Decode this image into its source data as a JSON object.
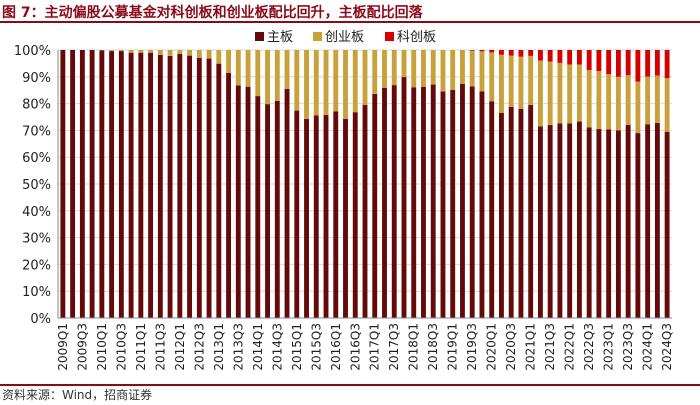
{
  "title": "图 7：主动偏股公募基金对科创板和创业板配比回升，主板配比回落",
  "source": "资料来源：Wind，招商证券",
  "chart_data": {
    "type": "bar",
    "stacked": true,
    "title": "",
    "xlabel": "",
    "ylabel": "",
    "ylim": [
      0,
      100
    ],
    "yticks": [
      "0%",
      "10%",
      "20%",
      "30%",
      "40%",
      "50%",
      "60%",
      "70%",
      "80%",
      "90%",
      "100%"
    ],
    "grid": true,
    "legend_position": "top",
    "categories": [
      "2009Q1",
      "2009Q2",
      "2009Q3",
      "2009Q4",
      "2010Q1",
      "2010Q2",
      "2010Q3",
      "2010Q4",
      "2011Q1",
      "2011Q2",
      "2011Q3",
      "2011Q4",
      "2012Q1",
      "2012Q2",
      "2012Q3",
      "2012Q4",
      "2013Q1",
      "2013Q2",
      "2013Q3",
      "2013Q4",
      "2014Q1",
      "2014Q2",
      "2014Q3",
      "2014Q4",
      "2015Q1",
      "2015Q2",
      "2015Q3",
      "2015Q4",
      "2016Q1",
      "2016Q2",
      "2016Q3",
      "2016Q4",
      "2017Q1",
      "2017Q2",
      "2017Q3",
      "2017Q4",
      "2018Q1",
      "2018Q2",
      "2018Q3",
      "2018Q4",
      "2019Q1",
      "2019Q2",
      "2019Q3",
      "2019Q4",
      "2020Q1",
      "2020Q2",
      "2020Q3",
      "2020Q4",
      "2021Q1",
      "2021Q2",
      "2021Q3",
      "2021Q4",
      "2022Q1",
      "2022Q2",
      "2022Q3",
      "2022Q4",
      "2023Q1",
      "2023Q2",
      "2023Q3",
      "2023Q4",
      "2024Q1",
      "2024Q2",
      "2024Q3"
    ],
    "series": [
      {
        "name": "主板",
        "color": "#640a0a",
        "values": [
          100,
          100,
          100,
          100,
          99.9,
          99.6,
          99.6,
          99,
          99,
          99,
          98.2,
          97.8,
          98.5,
          97.9,
          97.1,
          96.8,
          94.9,
          91.5,
          86.8,
          86.3,
          82.8,
          79.8,
          81,
          85.5,
          77.4,
          74.3,
          75.6,
          75.8,
          77.1,
          74.3,
          76.8,
          79.5,
          83.6,
          85.9,
          86.9,
          89.9,
          86.1,
          86.3,
          87.1,
          84.5,
          85.1,
          87.4,
          86.4,
          84.6,
          80.9,
          76.5,
          78.8,
          78.1,
          79.5,
          71.5,
          72,
          72.6,
          72.6,
          73.3,
          71.1,
          70.5,
          70.4,
          70,
          72.1,
          69,
          72.3,
          72.8,
          69.5
        ]
      },
      {
        "name": "创业板",
        "color": "#c9a13a",
        "values": [
          0,
          0,
          0,
          0,
          0.1,
          0.4,
          0.4,
          1,
          1,
          1,
          1.8,
          2.2,
          1.5,
          2.1,
          2.9,
          3.2,
          5.1,
          8.5,
          13.2,
          13.7,
          17.2,
          20.2,
          19,
          14.5,
          22.6,
          25.7,
          24.4,
          24.2,
          22.9,
          25.7,
          23.2,
          20.5,
          16.4,
          14.1,
          13.1,
          10.1,
          13.9,
          13.7,
          12.9,
          15.5,
          14.9,
          12.6,
          13.4,
          14.9,
          18.2,
          21.7,
          19.1,
          19.4,
          18.3,
          24.6,
          23.7,
          22.6,
          22,
          21.3,
          21.4,
          21.6,
          20.6,
          20,
          18.5,
          19.2,
          17.8,
          17.7,
          20
        ]
      },
      {
        "name": "科创板",
        "color": "#d40000",
        "values": [
          0,
          0,
          0,
          0,
          0,
          0,
          0,
          0,
          0,
          0,
          0,
          0,
          0,
          0,
          0,
          0,
          0,
          0,
          0,
          0,
          0,
          0,
          0,
          0,
          0,
          0,
          0,
          0,
          0,
          0,
          0,
          0,
          0,
          0,
          0,
          0,
          0,
          0,
          0,
          0,
          0,
          0,
          0.2,
          0.5,
          0.9,
          1.8,
          2.1,
          2.5,
          2.2,
          3.9,
          4.3,
          4.8,
          5.4,
          5.4,
          7.5,
          7.9,
          9,
          10,
          9.4,
          11.8,
          9.9,
          9.5,
          10.5
        ]
      }
    ]
  }
}
